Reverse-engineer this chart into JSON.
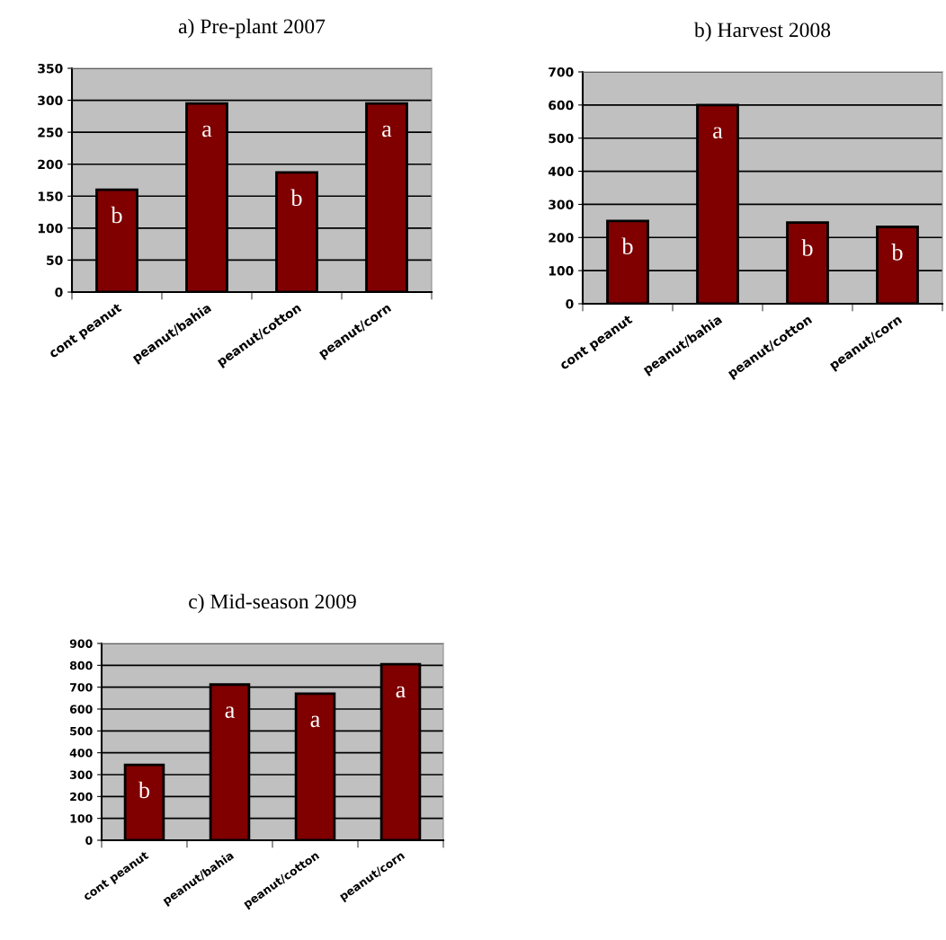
{
  "chart_data": [
    {
      "type": "bar",
      "title": "a) Pre-plant 2007",
      "categories": [
        "cont peanut",
        "peanut/bahia",
        "peanut/cotton",
        "peanut/corn"
      ],
      "values": [
        160,
        295,
        187,
        295
      ],
      "value_labels": [
        "b",
        "a",
        "b",
        "a"
      ],
      "color": "#800000",
      "ylim": [
        0,
        350
      ],
      "yticks": [
        0,
        50,
        100,
        150,
        200,
        250,
        300,
        350
      ],
      "grid": "y"
    },
    {
      "type": "bar",
      "title": "b) Harvest 2008",
      "categories": [
        "cont peanut",
        "peanut/bahia",
        "peanut/cotton",
        "peanut/corn"
      ],
      "values": [
        250,
        600,
        245,
        232
      ],
      "value_labels": [
        "b",
        "a",
        "b",
        "b"
      ],
      "color": "#800000",
      "ylim": [
        0,
        700
      ],
      "yticks": [
        0,
        100,
        200,
        300,
        400,
        500,
        600,
        700
      ],
      "grid": "y"
    },
    {
      "type": "bar",
      "title": "c) Mid-season 2009",
      "categories": [
        "cont peanut",
        "peanut/bahia",
        "peanut/cotton",
        "peanut/corn"
      ],
      "values": [
        345,
        712,
        670,
        805
      ],
      "value_labels": [
        "b",
        "a",
        "a",
        "a"
      ],
      "color": "#800000",
      "ylim": [
        0,
        900
      ],
      "yticks": [
        0,
        100,
        200,
        300,
        400,
        500,
        600,
        700,
        800,
        900
      ],
      "grid": "y"
    }
  ]
}
